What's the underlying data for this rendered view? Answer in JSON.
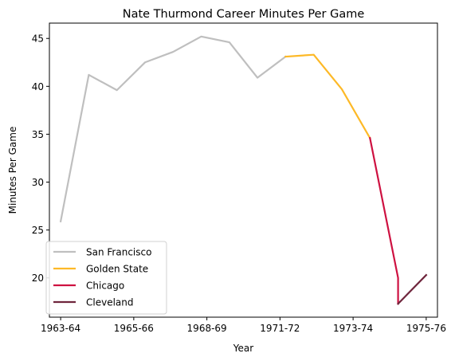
{
  "chart_data": {
    "type": "line",
    "title": "Nate Thurmond Career Minutes Per Game",
    "xlabel": "Year",
    "ylabel": "Minutes Per Game",
    "xlim": [
      -0.4,
      13.4
    ],
    "ylim": [
      15.9,
      46.6
    ],
    "xticks": [
      {
        "pos": 0,
        "label": "1963-64"
      },
      {
        "pos": 2.6,
        "label": "1965-66"
      },
      {
        "pos": 5.2,
        "label": "1968-69"
      },
      {
        "pos": 7.8,
        "label": "1971-72"
      },
      {
        "pos": 10.4,
        "label": "1973-74"
      },
      {
        "pos": 13,
        "label": "1975-76"
      }
    ],
    "yticks": [
      20,
      25,
      30,
      35,
      40,
      45
    ],
    "grid": false,
    "legend": {
      "placement": "lower-left"
    },
    "series": [
      {
        "name": "San Francisco",
        "color": "#BFBFBF",
        "x": [
          0,
          1,
          2,
          3,
          4,
          5,
          6,
          7,
          8
        ],
        "y": [
          25.9,
          41.2,
          39.6,
          42.5,
          43.6,
          45.2,
          44.6,
          40.9,
          43.1
        ]
      },
      {
        "name": "Golden State",
        "color": "#FDB927",
        "x": [
          8,
          9,
          10,
          11
        ],
        "y": [
          43.1,
          43.3,
          39.7,
          34.6
        ]
      },
      {
        "name": "Chicago",
        "color": "#CE1141",
        "x": [
          11,
          12,
          12
        ],
        "y": [
          34.6,
          20.0,
          17.3
        ]
      },
      {
        "name": "Cleveland",
        "color": "#6F263D",
        "x": [
          12,
          13
        ],
        "y": [
          17.3,
          20.3
        ]
      }
    ]
  }
}
